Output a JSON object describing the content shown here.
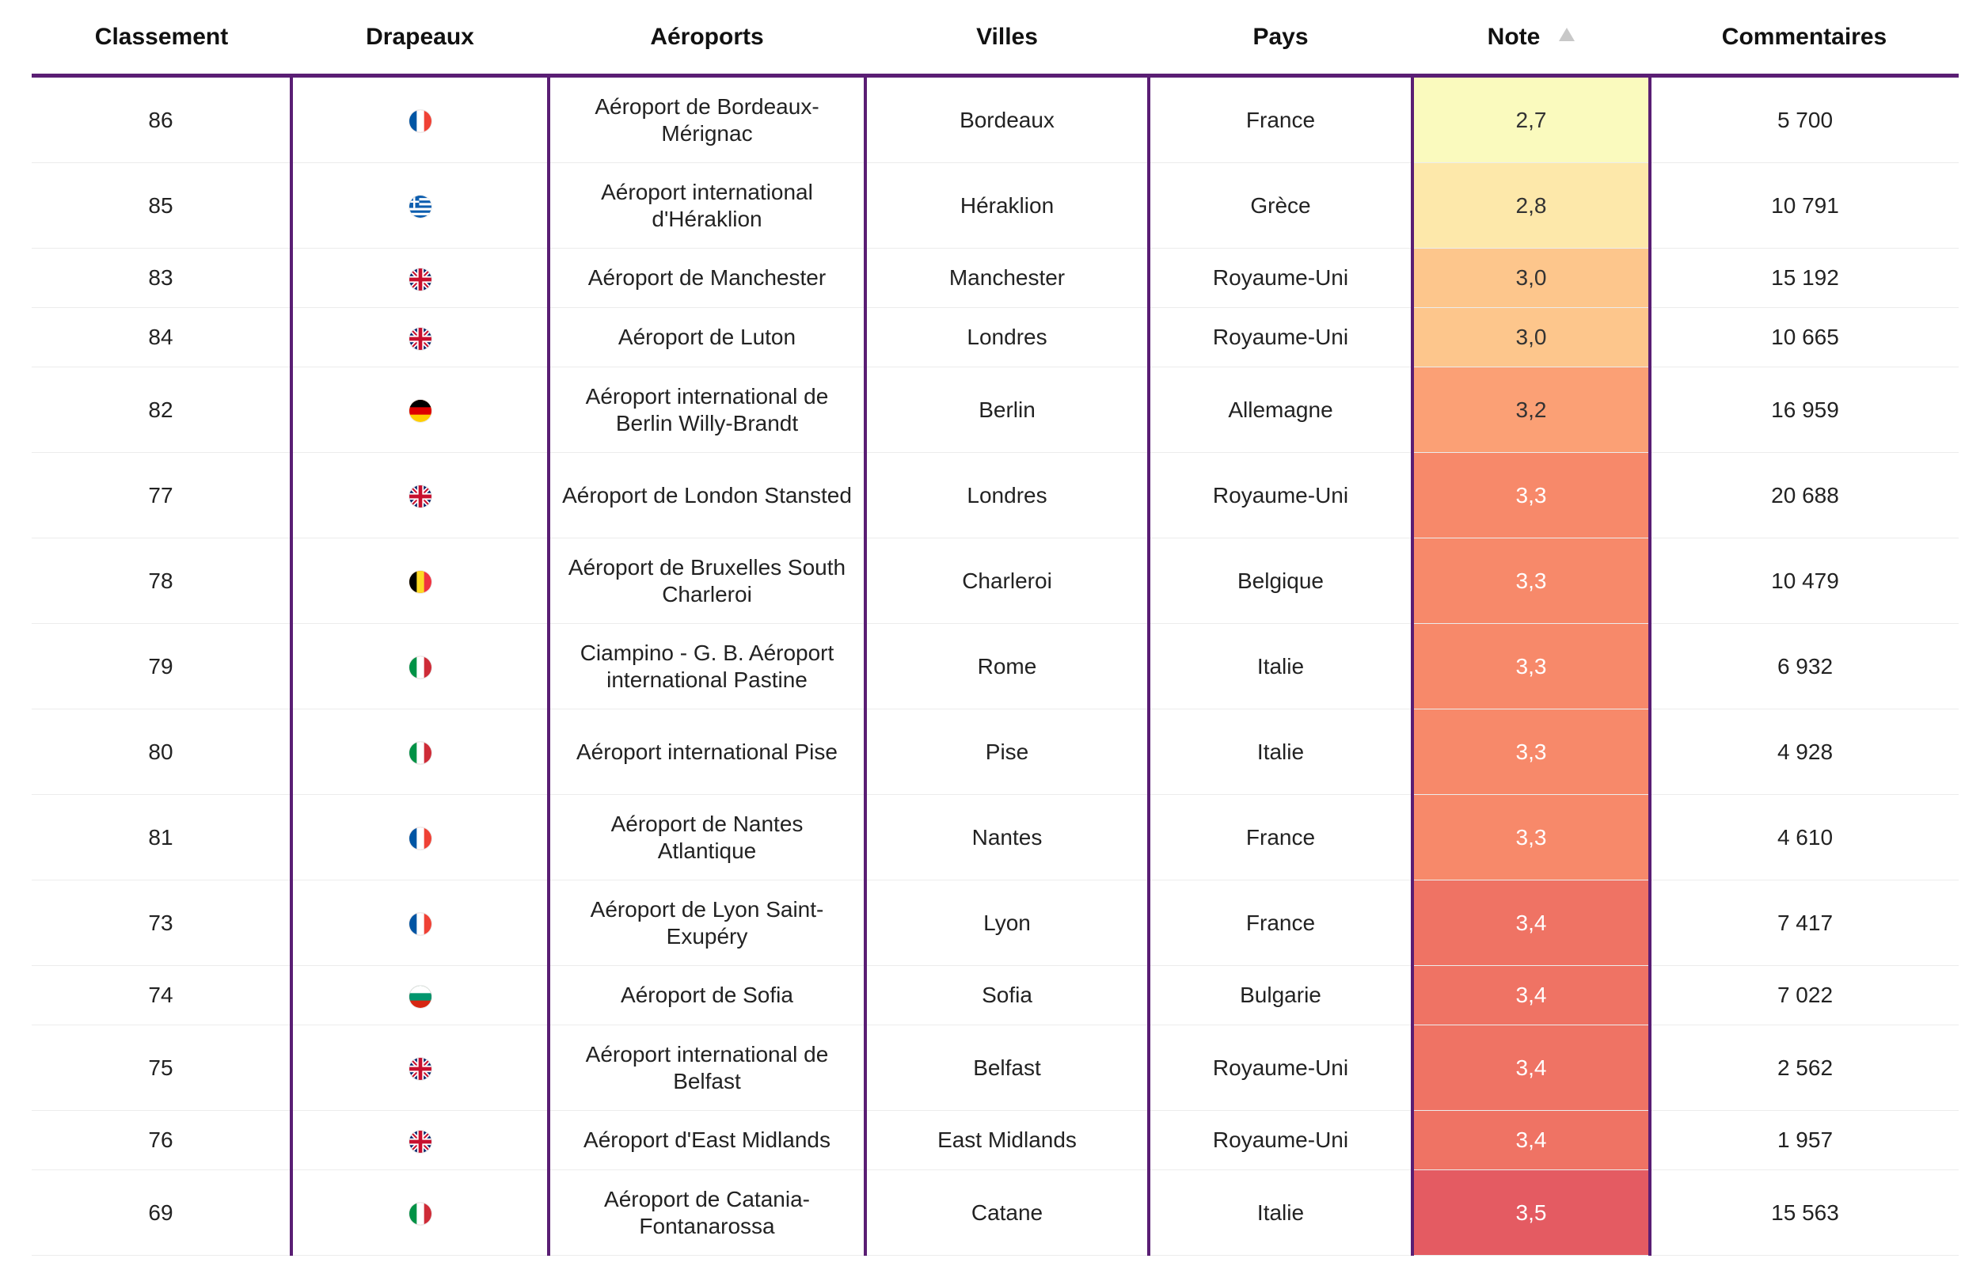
{
  "table": {
    "headers": [
      "Classement",
      "Drapeaux",
      "Aéroports",
      "Villes",
      "Pays",
      "Note",
      "Commentaires"
    ],
    "sort": {
      "column": "Note",
      "direction": "ascending"
    },
    "rows": [
      {
        "rank": "86",
        "flag": "flag-france-icon",
        "airport": "Aéroport de Bordeaux-Mérignac",
        "city": "Bordeaux",
        "country": "France",
        "note": "2,7",
        "comments": "5 700",
        "note_bg": "#fafabe",
        "note_fg": "#333333"
      },
      {
        "rank": "85",
        "flag": "flag-greece-icon",
        "airport": "Aéroport international d'Héraklion",
        "city": "Héraklion",
        "country": "Grèce",
        "note": "2,8",
        "comments": "10 791",
        "note_bg": "#fde8aa",
        "note_fg": "#333333"
      },
      {
        "rank": "83",
        "flag": "flag-uk-icon",
        "airport": "Aéroport de Manchester",
        "city": "Manchester",
        "country": "Royaume-Uni",
        "note": "3,0",
        "comments": "15 192",
        "note_bg": "#fdc68c",
        "note_fg": "#333333"
      },
      {
        "rank": "84",
        "flag": "flag-uk-icon",
        "airport": "Aéroport de Luton",
        "city": "Londres",
        "country": "Royaume-Uni",
        "note": "3,0",
        "comments": "10 665",
        "note_bg": "#fdc68c",
        "note_fg": "#333333"
      },
      {
        "rank": "82",
        "flag": "flag-germany-icon",
        "airport": "Aéroport international de Berlin Willy-Brandt",
        "city": "Berlin",
        "country": "Allemagne",
        "note": "3,2",
        "comments": "16 959",
        "note_bg": "#fba075",
        "note_fg": "#333333"
      },
      {
        "rank": "77",
        "flag": "flag-uk-icon",
        "airport": "Aéroport de London Stansted",
        "city": "Londres",
        "country": "Royaume-Uni",
        "note": "3,3",
        "comments": "20 688",
        "note_bg": "#f7896a",
        "note_fg": "#ffffff"
      },
      {
        "rank": "78",
        "flag": "flag-belgium-icon",
        "airport": "Aéroport de Bruxelles South Charleroi",
        "city": "Charleroi",
        "country": "Belgique",
        "note": "3,3",
        "comments": "10 479",
        "note_bg": "#f7896a",
        "note_fg": "#ffffff"
      },
      {
        "rank": "79",
        "flag": "flag-italy-icon",
        "airport": "Ciampino - G. B. Aéroport international Pastine",
        "city": "Rome",
        "country": "Italie",
        "note": "3,3",
        "comments": "6 932",
        "note_bg": "#f7896a",
        "note_fg": "#ffffff"
      },
      {
        "rank": "80",
        "flag": "flag-italy-icon",
        "airport": "Aéroport international Pise",
        "city": "Pise",
        "country": "Italie",
        "note": "3,3",
        "comments": "4 928",
        "note_bg": "#f7896a",
        "note_fg": "#ffffff"
      },
      {
        "rank": "81",
        "flag": "flag-france-icon",
        "airport": "Aéroport de Nantes Atlantique",
        "city": "Nantes",
        "country": "France",
        "note": "3,3",
        "comments": "4 610",
        "note_bg": "#f7896a",
        "note_fg": "#ffffff"
      },
      {
        "rank": "73",
        "flag": "flag-france-icon",
        "airport": "Aéroport de Lyon Saint-Exupéry",
        "city": "Lyon",
        "country": "France",
        "note": "3,4",
        "comments": "7 417",
        "note_bg": "#ef7364",
        "note_fg": "#ffffff"
      },
      {
        "rank": "74",
        "flag": "flag-bulgaria-icon",
        "airport": "Aéroport de Sofia",
        "city": "Sofia",
        "country": "Bulgarie",
        "note": "3,4",
        "comments": "7 022",
        "note_bg": "#ef7364",
        "note_fg": "#ffffff"
      },
      {
        "rank": "75",
        "flag": "flag-uk-icon",
        "airport": "Aéroport international de Belfast",
        "city": "Belfast",
        "country": "Royaume-Uni",
        "note": "3,4",
        "comments": "2 562",
        "note_bg": "#ef7364",
        "note_fg": "#ffffff"
      },
      {
        "rank": "76",
        "flag": "flag-uk-icon",
        "airport": "Aéroport d'East Midlands",
        "city": "East Midlands",
        "country": "Royaume-Uni",
        "note": "3,4",
        "comments": "1 957",
        "note_bg": "#ef7364",
        "note_fg": "#ffffff"
      },
      {
        "rank": "69",
        "flag": "flag-italy-icon",
        "airport": "Aéroport de Catania-Fontanarossa",
        "city": "Catane",
        "country": "Italie",
        "note": "3,5",
        "comments": "15 563",
        "note_bg": "#e45b62",
        "note_fg": "#ffffff"
      }
    ]
  }
}
